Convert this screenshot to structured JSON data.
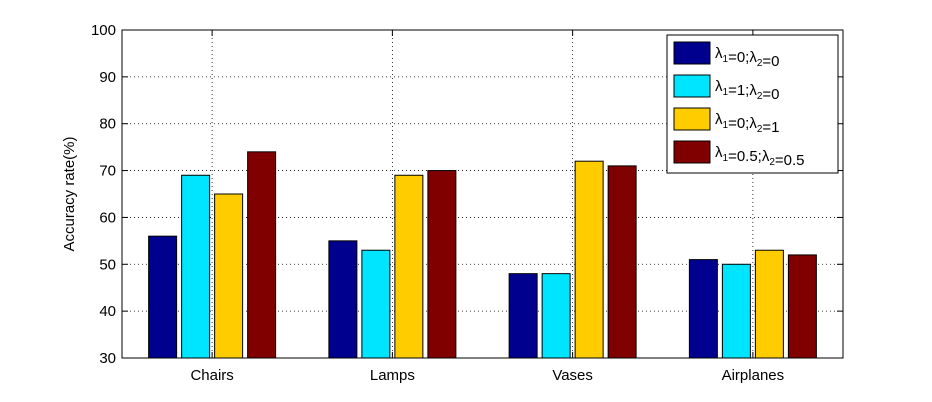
{
  "chart_data": {
    "type": "bar",
    "categories": [
      "Chairs",
      "Lamps",
      "Vases",
      "Airplanes"
    ],
    "ylabel": "Accuracy rate(%)",
    "ylim": [
      30,
      100
    ],
    "yticks": [
      30,
      40,
      50,
      60,
      70,
      80,
      90,
      100
    ],
    "grid": true,
    "legend_position": "top-right",
    "series": [
      {
        "name": "λ1=0;λ2=0",
        "color": "#00008f",
        "values": [
          56,
          55,
          48,
          51
        ]
      },
      {
        "name": "λ1=1;λ2=0",
        "color": "#00e5ff",
        "values": [
          69,
          53,
          48,
          50
        ]
      },
      {
        "name": "λ1=0;λ2=1",
        "color": "#ffcc00",
        "values": [
          65,
          69,
          72,
          53
        ]
      },
      {
        "name": "λ1=0.5;λ2=0.5",
        "color": "#800000",
        "values": [
          74,
          70,
          71,
          52
        ]
      }
    ]
  }
}
